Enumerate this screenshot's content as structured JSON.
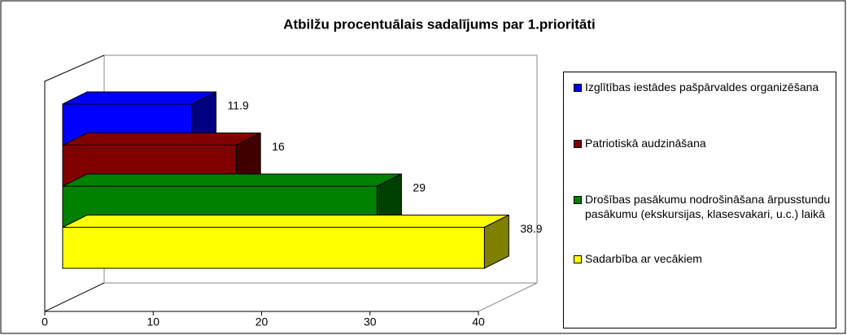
{
  "chart_data": {
    "type": "bar",
    "orientation": "horizontal",
    "title": "Atbilžu procentuālais sadalījums par 1.prioritāti",
    "categories": [
      "Izglītības iestādes pašpārvaldes organizēšana",
      "Patriotiskā audzināšana",
      "Drošības pasākumu nodrošināšana ārpusstundu pasākumu (ekskursijas, klasesvakari, u.c.) laikā",
      "Sadarbība ar vecākiem"
    ],
    "values": [
      11.9,
      16,
      29,
      38.9
    ],
    "colors": [
      "#0000ff",
      "#800000",
      "#008000",
      "#ffff00"
    ],
    "xlim": [
      0,
      40
    ],
    "xticks": [
      0,
      10,
      20,
      30,
      40
    ],
    "legend": "right"
  }
}
